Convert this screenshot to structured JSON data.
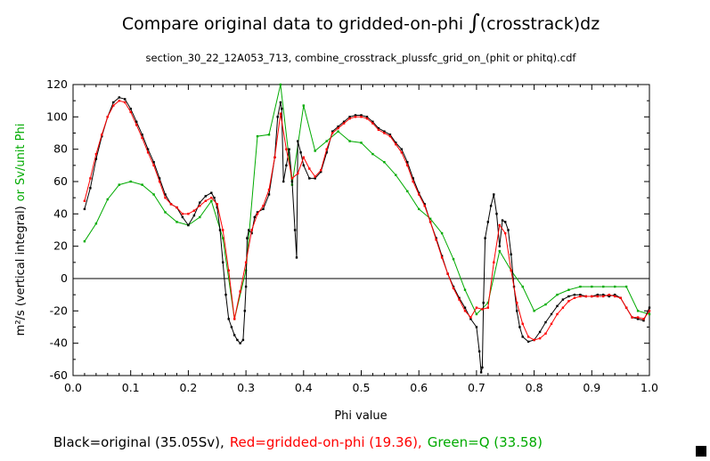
{
  "chart_data": {
    "type": "line",
    "title_prefix": "Compare original data to gridded-on-phi",
    "title_integral": "∫",
    "title_suffix": "(crosstrack)dz",
    "subtitle": "section_30_22_12A053_713, combine_crosstrack_plussfc_grid_on_(phit or phitq).cdf",
    "xlabel": "Phi value",
    "ylabel_main": "m²/s (vertical integral)",
    "ylabel_or": "or",
    "ylabel_green": "Sv/unit Phi",
    "xlim": [
      0.0,
      1.0
    ],
    "ylim": [
      -60,
      120
    ],
    "xticks": [
      "0.0",
      "0.1",
      "0.2",
      "0.3",
      "0.4",
      "0.5",
      "0.6",
      "0.7",
      "0.8",
      "0.9",
      "1.0"
    ],
    "xtick_values": [
      0.0,
      0.1,
      0.2,
      0.3,
      0.4,
      0.5,
      0.6,
      0.7,
      0.8,
      0.9,
      1.0
    ],
    "yticks": [
      "-60",
      "-40",
      "-20",
      "0",
      "20",
      "40",
      "60",
      "80",
      "100",
      "120"
    ],
    "ytick_values": [
      -60,
      -40,
      -20,
      0,
      20,
      40,
      60,
      80,
      100,
      120
    ],
    "zero_line": true,
    "legend_text": {
      "black": "Black=original (35.05Sv),",
      "red": "Red=gridded-on-phi (19.36),",
      "green": "Green=Q (33.58)"
    },
    "colors": {
      "black": "#000000",
      "red": "#ff0000",
      "green": "#00aa00"
    },
    "series": [
      {
        "key": "black",
        "color": "#000000",
        "x": [
          0.02,
          0.03,
          0.04,
          0.05,
          0.06,
          0.07,
          0.08,
          0.09,
          0.1,
          0.11,
          0.12,
          0.13,
          0.14,
          0.15,
          0.16,
          0.17,
          0.18,
          0.19,
          0.2,
          0.21,
          0.22,
          0.23,
          0.24,
          0.245,
          0.25,
          0.255,
          0.26,
          0.265,
          0.27,
          0.275,
          0.28,
          0.285,
          0.29,
          0.295,
          0.298,
          0.3,
          0.302,
          0.305,
          0.31,
          0.315,
          0.32,
          0.33,
          0.34,
          0.35,
          0.355,
          0.36,
          0.362,
          0.365,
          0.37,
          0.375,
          0.38,
          0.385,
          0.388,
          0.39,
          0.395,
          0.4,
          0.41,
          0.42,
          0.43,
          0.44,
          0.45,
          0.46,
          0.47,
          0.48,
          0.49,
          0.5,
          0.51,
          0.52,
          0.53,
          0.54,
          0.55,
          0.56,
          0.57,
          0.58,
          0.59,
          0.6,
          0.61,
          0.62,
          0.63,
          0.64,
          0.65,
          0.66,
          0.67,
          0.68,
          0.69,
          0.7,
          0.705,
          0.708,
          0.71,
          0.712,
          0.715,
          0.72,
          0.725,
          0.73,
          0.735,
          0.74,
          0.745,
          0.75,
          0.755,
          0.76,
          0.765,
          0.77,
          0.775,
          0.78,
          0.79,
          0.8,
          0.81,
          0.82,
          0.83,
          0.84,
          0.85,
          0.86,
          0.87,
          0.88,
          0.89,
          0.9,
          0.91,
          0.92,
          0.93,
          0.94,
          0.95,
          0.96,
          0.97,
          0.98,
          0.99,
          1.0
        ],
        "y": [
          43,
          56,
          74,
          88,
          100,
          109,
          112,
          111,
          105,
          97,
          89,
          80,
          72,
          62,
          52,
          46,
          44,
          38,
          33,
          39,
          47,
          51,
          53,
          50,
          44,
          30,
          10,
          -10,
          -25,
          -30,
          -35,
          -38,
          -40,
          -38,
          -20,
          -5,
          25,
          30,
          28,
          38,
          41,
          43,
          52,
          75,
          100,
          109,
          105,
          60,
          70,
          80,
          60,
          30,
          13,
          85,
          78,
          70,
          62,
          62,
          66,
          78,
          91,
          94,
          97,
          100,
          101,
          101,
          100,
          97,
          93,
          91,
          89,
          84,
          80,
          72,
          62,
          53,
          46,
          35,
          25,
          14,
          3,
          -5,
          -12,
          -18,
          -25,
          -30,
          -45,
          -58,
          -55,
          -15,
          25,
          35,
          45,
          52,
          40,
          20,
          36,
          35,
          30,
          15,
          -5,
          -20,
          -30,
          -36,
          -39,
          -38,
          -33,
          -27,
          -22,
          -17,
          -13,
          -11,
          -10,
          -10,
          -11,
          -11,
          -10,
          -10,
          -11,
          -10,
          -12,
          -18,
          -24,
          -25,
          -26,
          -18
        ]
      },
      {
        "key": "red",
        "color": "#ff0000",
        "x": [
          0.02,
          0.03,
          0.04,
          0.05,
          0.06,
          0.07,
          0.08,
          0.09,
          0.1,
          0.11,
          0.12,
          0.13,
          0.14,
          0.15,
          0.16,
          0.17,
          0.18,
          0.19,
          0.2,
          0.21,
          0.22,
          0.23,
          0.24,
          0.25,
          0.26,
          0.27,
          0.28,
          0.29,
          0.3,
          0.31,
          0.32,
          0.33,
          0.34,
          0.35,
          0.36,
          0.37,
          0.38,
          0.39,
          0.4,
          0.41,
          0.42,
          0.43,
          0.44,
          0.45,
          0.46,
          0.47,
          0.48,
          0.49,
          0.5,
          0.51,
          0.52,
          0.53,
          0.54,
          0.55,
          0.56,
          0.57,
          0.58,
          0.59,
          0.6,
          0.61,
          0.62,
          0.63,
          0.64,
          0.65,
          0.66,
          0.67,
          0.68,
          0.69,
          0.7,
          0.71,
          0.72,
          0.73,
          0.74,
          0.75,
          0.76,
          0.77,
          0.78,
          0.79,
          0.8,
          0.81,
          0.82,
          0.83,
          0.84,
          0.85,
          0.86,
          0.87,
          0.88,
          0.89,
          0.9,
          0.91,
          0.92,
          0.93,
          0.94,
          0.95,
          0.96,
          0.97,
          0.98,
          0.99,
          1.0
        ],
        "y": [
          48,
          62,
          77,
          89,
          100,
          107,
          110,
          109,
          103,
          95,
          87,
          78,
          70,
          60,
          50,
          46,
          44,
          40,
          40,
          42,
          45,
          48,
          50,
          46,
          30,
          5,
          -25,
          -8,
          10,
          30,
          40,
          45,
          55,
          75,
          102,
          80,
          62,
          65,
          75,
          68,
          63,
          67,
          80,
          90,
          93,
          96,
          99,
          100,
          100,
          99,
          96,
          92,
          90,
          88,
          83,
          78,
          70,
          60,
          52,
          45,
          35,
          24,
          13,
          3,
          -6,
          -13,
          -20,
          -24,
          -18,
          -19,
          -18,
          10,
          33,
          28,
          5,
          -15,
          -28,
          -36,
          -38,
          -37,
          -34,
          -28,
          -22,
          -18,
          -14,
          -12,
          -11,
          -11,
          -11,
          -11,
          -11,
          -10,
          -11,
          -12,
          -18,
          -24,
          -24,
          -25,
          -20
        ]
      },
      {
        "key": "green",
        "color": "#00aa00",
        "x": [
          0.02,
          0.04,
          0.06,
          0.08,
          0.1,
          0.12,
          0.14,
          0.16,
          0.18,
          0.2,
          0.22,
          0.24,
          0.26,
          0.28,
          0.3,
          0.32,
          0.34,
          0.36,
          0.38,
          0.4,
          0.42,
          0.44,
          0.46,
          0.48,
          0.5,
          0.52,
          0.54,
          0.56,
          0.58,
          0.6,
          0.62,
          0.64,
          0.66,
          0.68,
          0.7,
          0.72,
          0.74,
          0.76,
          0.78,
          0.8,
          0.82,
          0.84,
          0.86,
          0.88,
          0.9,
          0.92,
          0.94,
          0.96,
          0.98,
          1.0
        ],
        "y": [
          23,
          34,
          49,
          58,
          60,
          58,
          52,
          41,
          35,
          33,
          38,
          48,
          25,
          -25,
          5,
          88,
          89,
          120,
          58,
          107,
          79,
          85,
          91,
          85,
          84,
          77,
          72,
          64,
          54,
          43,
          37,
          28,
          12,
          -7,
          -22,
          -15,
          17,
          5,
          -5,
          -20,
          -16,
          -10,
          -7,
          -5,
          -5,
          -5,
          -5,
          -5,
          -20,
          -22
        ]
      }
    ]
  }
}
